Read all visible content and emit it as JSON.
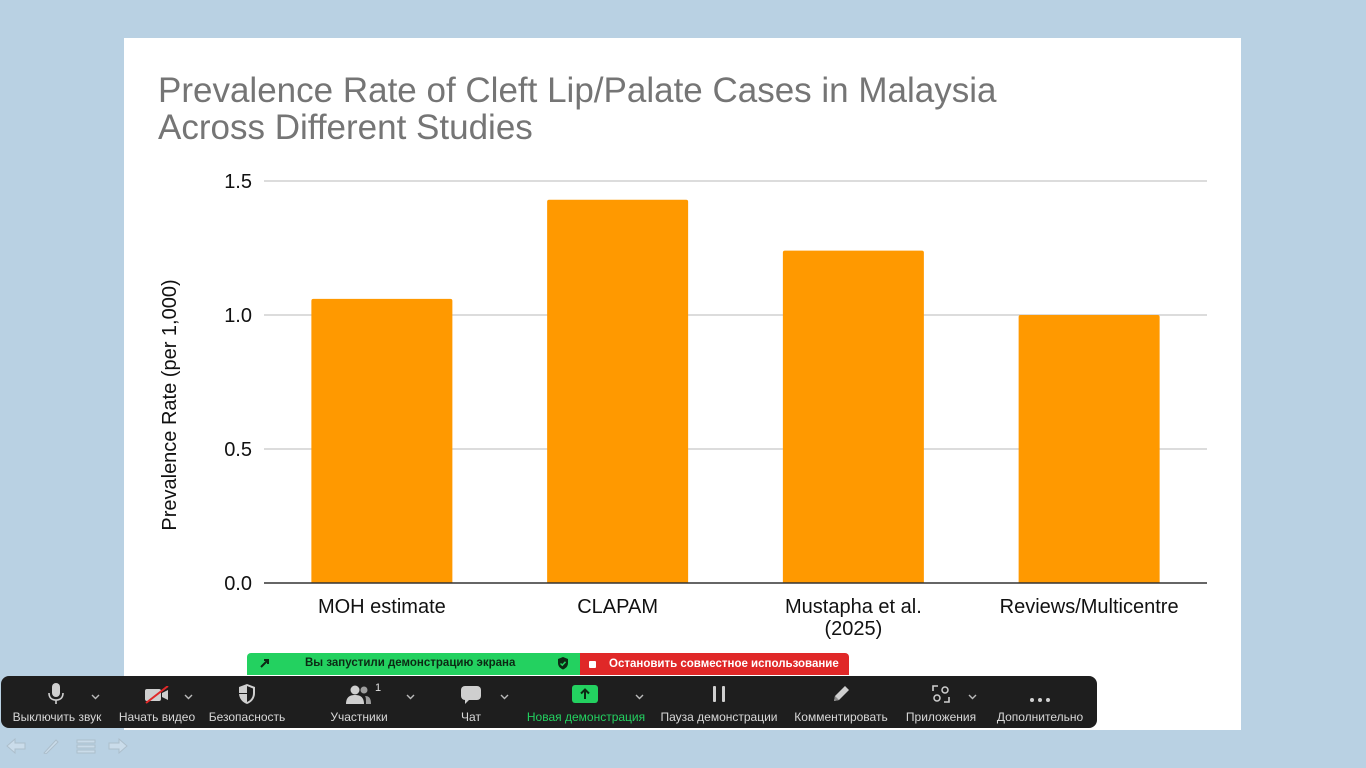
{
  "chart_data": {
    "type": "bar",
    "title_lines": [
      "Prevalence Rate of Cleft Lip/Palate Cases in Malaysia",
      "Across Different Studies"
    ],
    "categories": [
      [
        "MOH estimate"
      ],
      [
        "CLAPAM"
      ],
      [
        "Mustapha et al.",
        "(2025)"
      ],
      [
        "Reviews/Multicentre"
      ]
    ],
    "values": [
      1.06,
      1.43,
      1.24,
      1.0
    ],
    "ylabel": "Prevalence Rate (per 1,000)",
    "xlabel": "",
    "ylim": [
      0,
      1.5
    ],
    "yticks": [
      "0.0",
      "0.5",
      "1.0",
      "1.5"
    ],
    "ytick_values": [
      0,
      0.5,
      1.0,
      1.5
    ],
    "bar_color": "#ff9900",
    "grid": true,
    "legend": "none"
  },
  "share_banner": {
    "sharing_text": "Вы запустили демонстрацию экрана",
    "stop_text": "Остановить совместное использование",
    "colors": {
      "sharing": "#23d160",
      "stop": "#e02828"
    }
  },
  "toolbar": {
    "mute": "Выключить звук",
    "video": "Начать видео",
    "security": "Безопасность",
    "participants": "Участники",
    "participants_count": "1",
    "chat": "Чат",
    "new_share": "Новая демонстрация",
    "pause_share": "Пауза демонстрации",
    "annotate": "Комментировать",
    "apps": "Приложения",
    "more": "Дополнительно"
  },
  "slide_nav": {
    "icons": [
      "prev-arrow-icon",
      "pen-icon",
      "menu-icon",
      "next-arrow-icon"
    ]
  }
}
